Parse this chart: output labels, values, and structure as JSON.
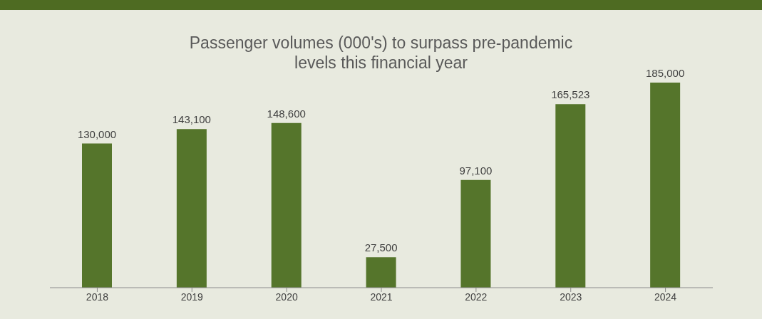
{
  "chart_data": {
    "type": "bar",
    "title": "Passenger volumes (000's) to surpass pre-pandemic levels this financial year",
    "categories": [
      "2018",
      "2019",
      "2020",
      "2021",
      "2022",
      "2023",
      "2024"
    ],
    "values": [
      130000,
      143100,
      148600,
      27500,
      97100,
      165523,
      185000
    ],
    "value_labels": [
      "130,000",
      "143,100",
      "148,600",
      "27,500",
      "97,100",
      "165,523",
      "185,000"
    ],
    "color": "#55752b"
  }
}
